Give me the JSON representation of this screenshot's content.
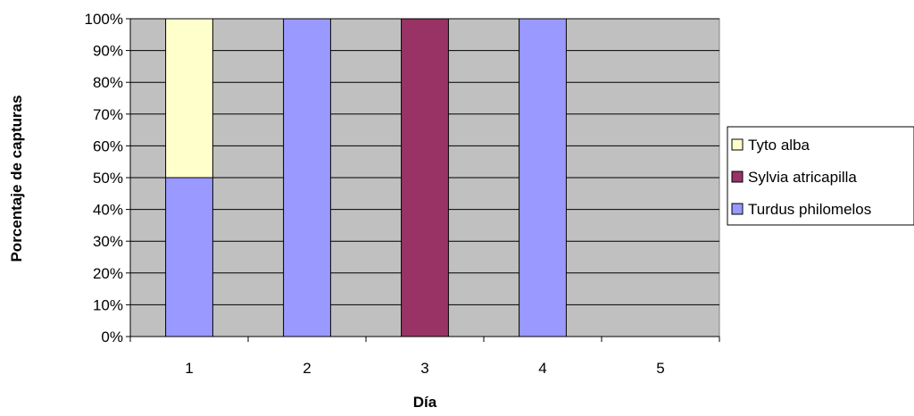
{
  "chart_data": {
    "type": "bar",
    "stacked": true,
    "percent": true,
    "title": "",
    "xlabel": "Día",
    "ylabel": "Porcentaje de capturas",
    "categories": [
      "1",
      "2",
      "3",
      "4",
      "5"
    ],
    "ylim": [
      0,
      100
    ],
    "yticks": [
      "0%",
      "10%",
      "20%",
      "30%",
      "40%",
      "50%",
      "60%",
      "70%",
      "80%",
      "90%",
      "100%"
    ],
    "grid": true,
    "legend_position": "right",
    "series": [
      {
        "name": "Turdus philomelos",
        "values": [
          50,
          100,
          0,
          100,
          0
        ],
        "color": "#9999FF"
      },
      {
        "name": "Sylvia atricapilla",
        "values": [
          0,
          0,
          100,
          0,
          0
        ],
        "color": "#993366"
      },
      {
        "name": "Tyto alba",
        "values": [
          50,
          0,
          0,
          0,
          0
        ],
        "color": "#FFFFCC"
      }
    ],
    "plot_background": "#C0C0C0"
  }
}
